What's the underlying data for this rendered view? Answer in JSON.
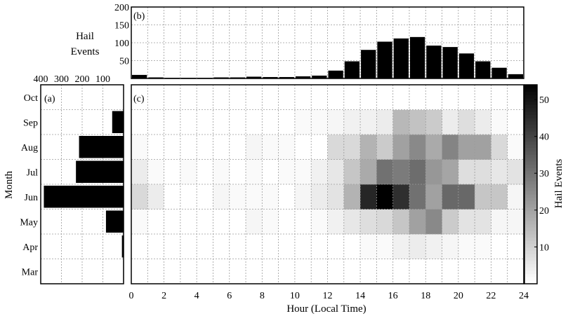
{
  "chart_data": [
    {
      "panel": "(b)",
      "type": "bar",
      "ylabel": "Hail Events",
      "yticks": [
        50,
        100,
        150,
        200
      ],
      "ylim": [
        0,
        200
      ],
      "x": [
        0,
        1,
        2,
        3,
        4,
        5,
        6,
        7,
        8,
        9,
        10,
        11,
        12,
        13,
        14,
        15,
        16,
        17,
        18,
        19,
        20,
        21,
        22,
        23
      ],
      "values": [
        10,
        3,
        2,
        2,
        2,
        3,
        3,
        5,
        4,
        4,
        6,
        8,
        22,
        48,
        80,
        103,
        112,
        116,
        92,
        88,
        70,
        48,
        30,
        12
      ],
      "grid": true
    },
    {
      "panel": "(a)",
      "type": "bar",
      "orientation": "horizontal",
      "xticks": [
        400,
        300,
        200,
        100
      ],
      "xlim": [
        0,
        400
      ],
      "xdirection": "reversed",
      "ylabel": "Month",
      "categories": [
        "Mar",
        "Apr",
        "May",
        "Jun",
        "Jul",
        "Aug",
        "Sep",
        "Oct"
      ],
      "values": [
        2,
        8,
        85,
        385,
        230,
        215,
        55,
        0
      ],
      "grid": true
    },
    {
      "panel": "(c)",
      "type": "heatmap",
      "xlabel": "Hour (Local Time)",
      "xticks": [
        0,
        2,
        4,
        6,
        8,
        10,
        12,
        14,
        16,
        18,
        20,
        22,
        24
      ],
      "xlim": [
        0,
        24
      ],
      "y": [
        "Mar",
        "Apr",
        "May",
        "Jun",
        "Jul",
        "Aug",
        "Sep",
        "Oct"
      ],
      "colorbar_label": "Hail Events",
      "colorbar_ticks": [
        10,
        20,
        30,
        40,
        50
      ],
      "crange": [
        0,
        54
      ],
      "colormap": "white-to-black",
      "grid": true,
      "z": [
        [
          0,
          0,
          0,
          0,
          0,
          0,
          0,
          0,
          0,
          0,
          0,
          0,
          0,
          0,
          0,
          0,
          0,
          0,
          0,
          0,
          0,
          0,
          0,
          0
        ],
        [
          0,
          0,
          0,
          0,
          0,
          0,
          0,
          0,
          0,
          0,
          0,
          0,
          0,
          0,
          1,
          1,
          3,
          4,
          3,
          2,
          1,
          1,
          0,
          0
        ],
        [
          1,
          0,
          0,
          0,
          0,
          0,
          0,
          2,
          1,
          0,
          0,
          1,
          3,
          5,
          7,
          8,
          12,
          20,
          25,
          11,
          6,
          6,
          2,
          2
        ],
        [
          8,
          4,
          0,
          0,
          0,
          2,
          1,
          1,
          1,
          0,
          2,
          4,
          6,
          16,
          46,
          54,
          44,
          30,
          20,
          32,
          32,
          12,
          12,
          2
        ],
        [
          4,
          1,
          0,
          1,
          0,
          1,
          0,
          1,
          0,
          1,
          1,
          3,
          5,
          12,
          18,
          30,
          28,
          31,
          22,
          19,
          7,
          7,
          5,
          6
        ],
        [
          1,
          0,
          0,
          0,
          0,
          0,
          0,
          2,
          1,
          1,
          0,
          0,
          8,
          8,
          16,
          11,
          20,
          25,
          18,
          26,
          20,
          20,
          8,
          1
        ],
        [
          0,
          0,
          0,
          0,
          0,
          0,
          0,
          0,
          0,
          0,
          1,
          1,
          2,
          3,
          3,
          4,
          15,
          13,
          11,
          4,
          7,
          4,
          1,
          0
        ],
        [
          0,
          0,
          0,
          0,
          0,
          0,
          0,
          0,
          0,
          0,
          0,
          0,
          0,
          0,
          0,
          0,
          0,
          0,
          0,
          0,
          0,
          0,
          0,
          0
        ]
      ]
    }
  ]
}
